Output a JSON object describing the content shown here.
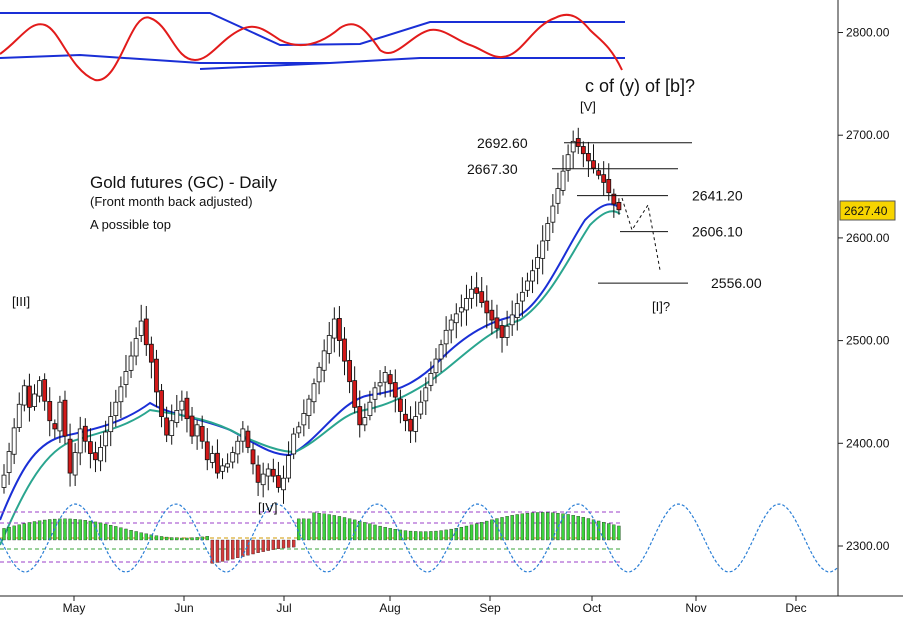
{
  "chart_data": {
    "type": "candlestick",
    "title": "Gold futures (GC) - Daily",
    "subtitle": "(Front month back adjusted)",
    "note": "A possible top",
    "y_ticks": [
      "2300.00",
      "2400.00",
      "2500.00",
      "2600.00",
      "2700.00",
      "2800.00"
    ],
    "y_tick_values": [
      2300,
      2400,
      2500,
      2600,
      2700,
      2800
    ],
    "ylim": [
      2263,
      2833
    ],
    "x_labels": [
      "May",
      "Jun",
      "Jul",
      "Aug",
      "Sep",
      "Oct",
      "Nov",
      "Dec"
    ],
    "current_price": "2627.40",
    "wave_labels": {
      "iii": "[III]",
      "iv": "[IV]",
      "v": "[V]",
      "target": "c of (y) of [b]?",
      "i_next": "[I]?"
    },
    "levels": [
      {
        "label": "2692.60",
        "value": 2692.6
      },
      {
        "label": "2667.30",
        "value": 2667.3
      },
      {
        "label": "2641.20",
        "value": 2641.2
      },
      {
        "label": "2606.10",
        "value": 2606.1
      },
      {
        "label": "2556.00",
        "value": 2556.0
      }
    ],
    "closes": [
      2369,
      2392,
      2415,
      2438,
      2456,
      2435,
      2448,
      2461,
      2441,
      2422,
      2414,
      2440,
      2407,
      2371,
      2391,
      2414,
      2402,
      2390,
      2384,
      2396,
      2411,
      2426,
      2440,
      2455,
      2470,
      2485,
      2502,
      2519,
      2496,
      2479,
      2450,
      2426,
      2408,
      2422,
      2432,
      2441,
      2424,
      2407,
      2418,
      2402,
      2384,
      2390,
      2371,
      2378,
      2380,
      2391,
      2402,
      2414,
      2396,
      2380,
      2362,
      2370,
      2375,
      2368,
      2357,
      2366,
      2388,
      2409,
      2416,
      2429,
      2443,
      2458,
      2474,
      2490,
      2505,
      2521,
      2500,
      2480,
      2460,
      2435,
      2418,
      2425,
      2440,
      2454,
      2459,
      2469,
      2458,
      2445,
      2431,
      2422,
      2412,
      2426,
      2440,
      2454,
      2468,
      2482,
      2496,
      2510,
      2520,
      2526,
      2532,
      2541,
      2550,
      2546,
      2537,
      2527,
      2520,
      2512,
      2503,
      2514,
      2525,
      2536,
      2547,
      2558,
      2568,
      2581,
      2597,
      2614,
      2631,
      2648,
      2665,
      2681,
      2694,
      2689,
      2682,
      2675,
      2668,
      2661,
      2654,
      2644,
      2633,
      2627.4
    ],
    "series_names": [
      "",
      ""
    ]
  }
}
